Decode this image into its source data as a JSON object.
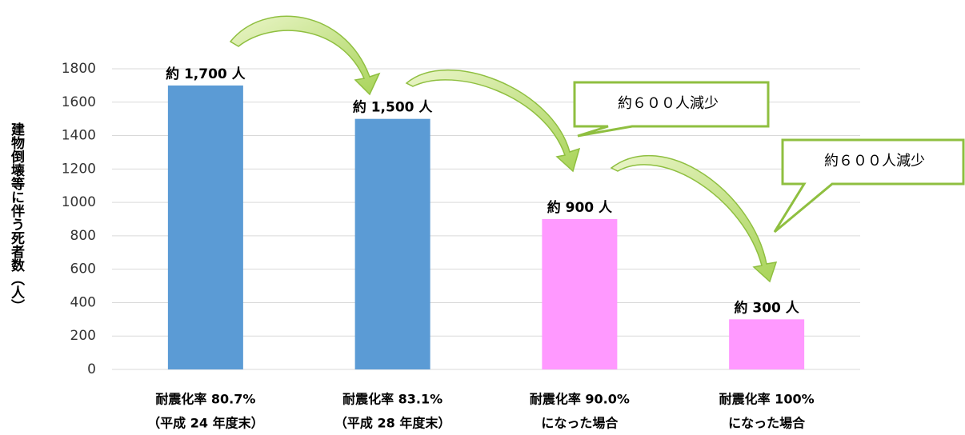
{
  "chart_data": {
    "type": "bar",
    "y_label": "建物倒壊等に伴う死者数（人）",
    "categories": [
      [
        "耐震化率 80.7%",
        "（平成 24 年度末）"
      ],
      [
        "耐震化率 83.1%",
        "（平成 28 年度末）"
      ],
      [
        "耐震化率 90.0%",
        "になった場合"
      ],
      [
        "耐震化率 100%",
        "になった場合"
      ]
    ],
    "values": [
      1700,
      1500,
      900,
      300
    ],
    "value_labels": [
      "約 1,700 人",
      "約 1,500 人",
      "約 900 人",
      "約 300 人"
    ],
    "colors": [
      "#5b9bd5",
      "#5b9bd5",
      "#ff99ff",
      "#ff99ff"
    ],
    "ylim": [
      0,
      1800
    ],
    "yticks": [
      0,
      200,
      400,
      600,
      800,
      1000,
      1200,
      1400,
      1600,
      1800
    ],
    "grid": true,
    "annotations": [
      "約６００人減少",
      "約６００人減少"
    ]
  }
}
